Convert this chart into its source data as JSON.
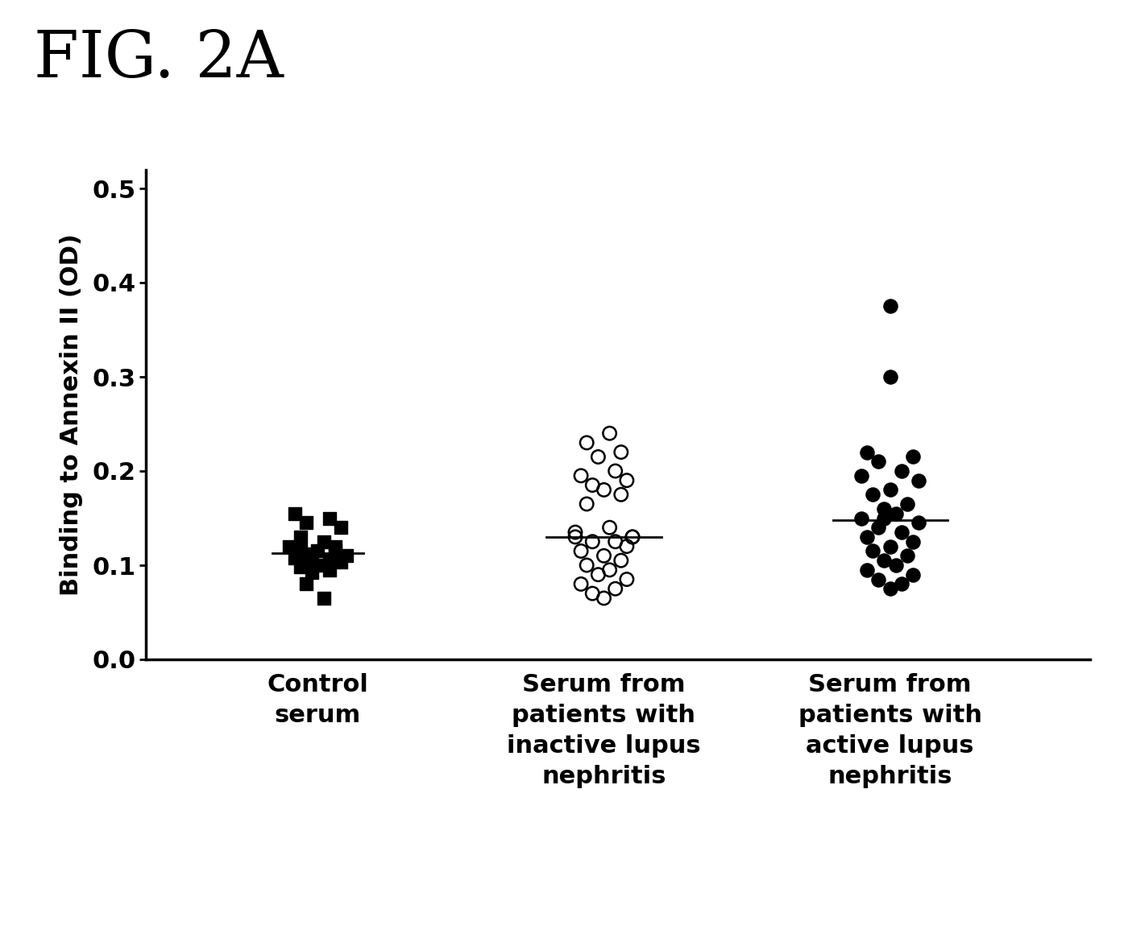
{
  "title": "FIG. 2A",
  "ylabel": "Binding to Annexin II (OD)",
  "ylim": [
    0.0,
    0.52
  ],
  "yticks": [
    0.0,
    0.1,
    0.2,
    0.3,
    0.4,
    0.5
  ],
  "xlim": [
    0.4,
    3.7
  ],
  "group_labels": [
    "Control\nserum",
    "Serum from\npatients with\ninactive lupus\nnephritis",
    "Serum from\npatients with\nactive lupus\nnephritis"
  ],
  "group1_y": [
    0.155,
    0.15,
    0.145,
    0.14,
    0.13,
    0.125,
    0.12,
    0.12,
    0.115,
    0.115,
    0.115,
    0.112,
    0.11,
    0.108,
    0.106,
    0.105,
    0.103,
    0.1,
    0.098,
    0.095,
    0.092,
    0.08,
    0.065
  ],
  "group1_jitter": [
    -0.08,
    0.04,
    -0.04,
    0.08,
    -0.06,
    0.02,
    0.06,
    -0.1,
    0.0,
    -0.06,
    0.06,
    -0.02,
    0.1,
    -0.08,
    0.04,
    -0.04,
    0.08,
    0.0,
    -0.06,
    0.04,
    -0.02,
    -0.04,
    0.02
  ],
  "group1_median": 0.113,
  "group2_y": [
    0.24,
    0.23,
    0.22,
    0.215,
    0.2,
    0.195,
    0.19,
    0.185,
    0.18,
    0.175,
    0.165,
    0.14,
    0.135,
    0.13,
    0.125,
    0.125,
    0.12,
    0.115,
    0.11,
    0.105,
    0.1,
    0.095,
    0.09,
    0.085,
    0.08,
    0.075,
    0.07,
    0.065,
    0.13,
    0.13
  ],
  "group2_jitter": [
    0.02,
    -0.06,
    0.06,
    -0.02,
    0.04,
    -0.08,
    0.08,
    -0.04,
    0.0,
    0.06,
    -0.06,
    0.02,
    -0.1,
    0.1,
    0.04,
    -0.04,
    0.08,
    -0.08,
    0.0,
    0.06,
    -0.06,
    0.02,
    -0.02,
    0.08,
    -0.08,
    0.04,
    -0.04,
    0.0,
    -0.1,
    0.1
  ],
  "group2_median": 0.13,
  "group3_y": [
    0.375,
    0.3,
    0.22,
    0.215,
    0.21,
    0.2,
    0.195,
    0.19,
    0.18,
    0.175,
    0.165,
    0.16,
    0.155,
    0.15,
    0.145,
    0.14,
    0.135,
    0.13,
    0.125,
    0.12,
    0.115,
    0.11,
    0.105,
    0.1,
    0.095,
    0.09,
    0.085,
    0.08,
    0.075,
    0.15
  ],
  "group3_jitter": [
    0.0,
    0.0,
    -0.08,
    0.08,
    -0.04,
    0.04,
    -0.1,
    0.1,
    0.0,
    -0.06,
    0.06,
    -0.02,
    0.02,
    -0.1,
    0.1,
    -0.04,
    0.04,
    -0.08,
    0.08,
    0.0,
    -0.06,
    0.06,
    -0.02,
    0.02,
    -0.08,
    0.08,
    -0.04,
    0.04,
    0.0,
    -0.02
  ],
  "group3_median": 0.148,
  "marker_size_sq": 120,
  "marker_size_circ": 140,
  "line_color": "black",
  "bg_color": "white",
  "text_color": "black"
}
